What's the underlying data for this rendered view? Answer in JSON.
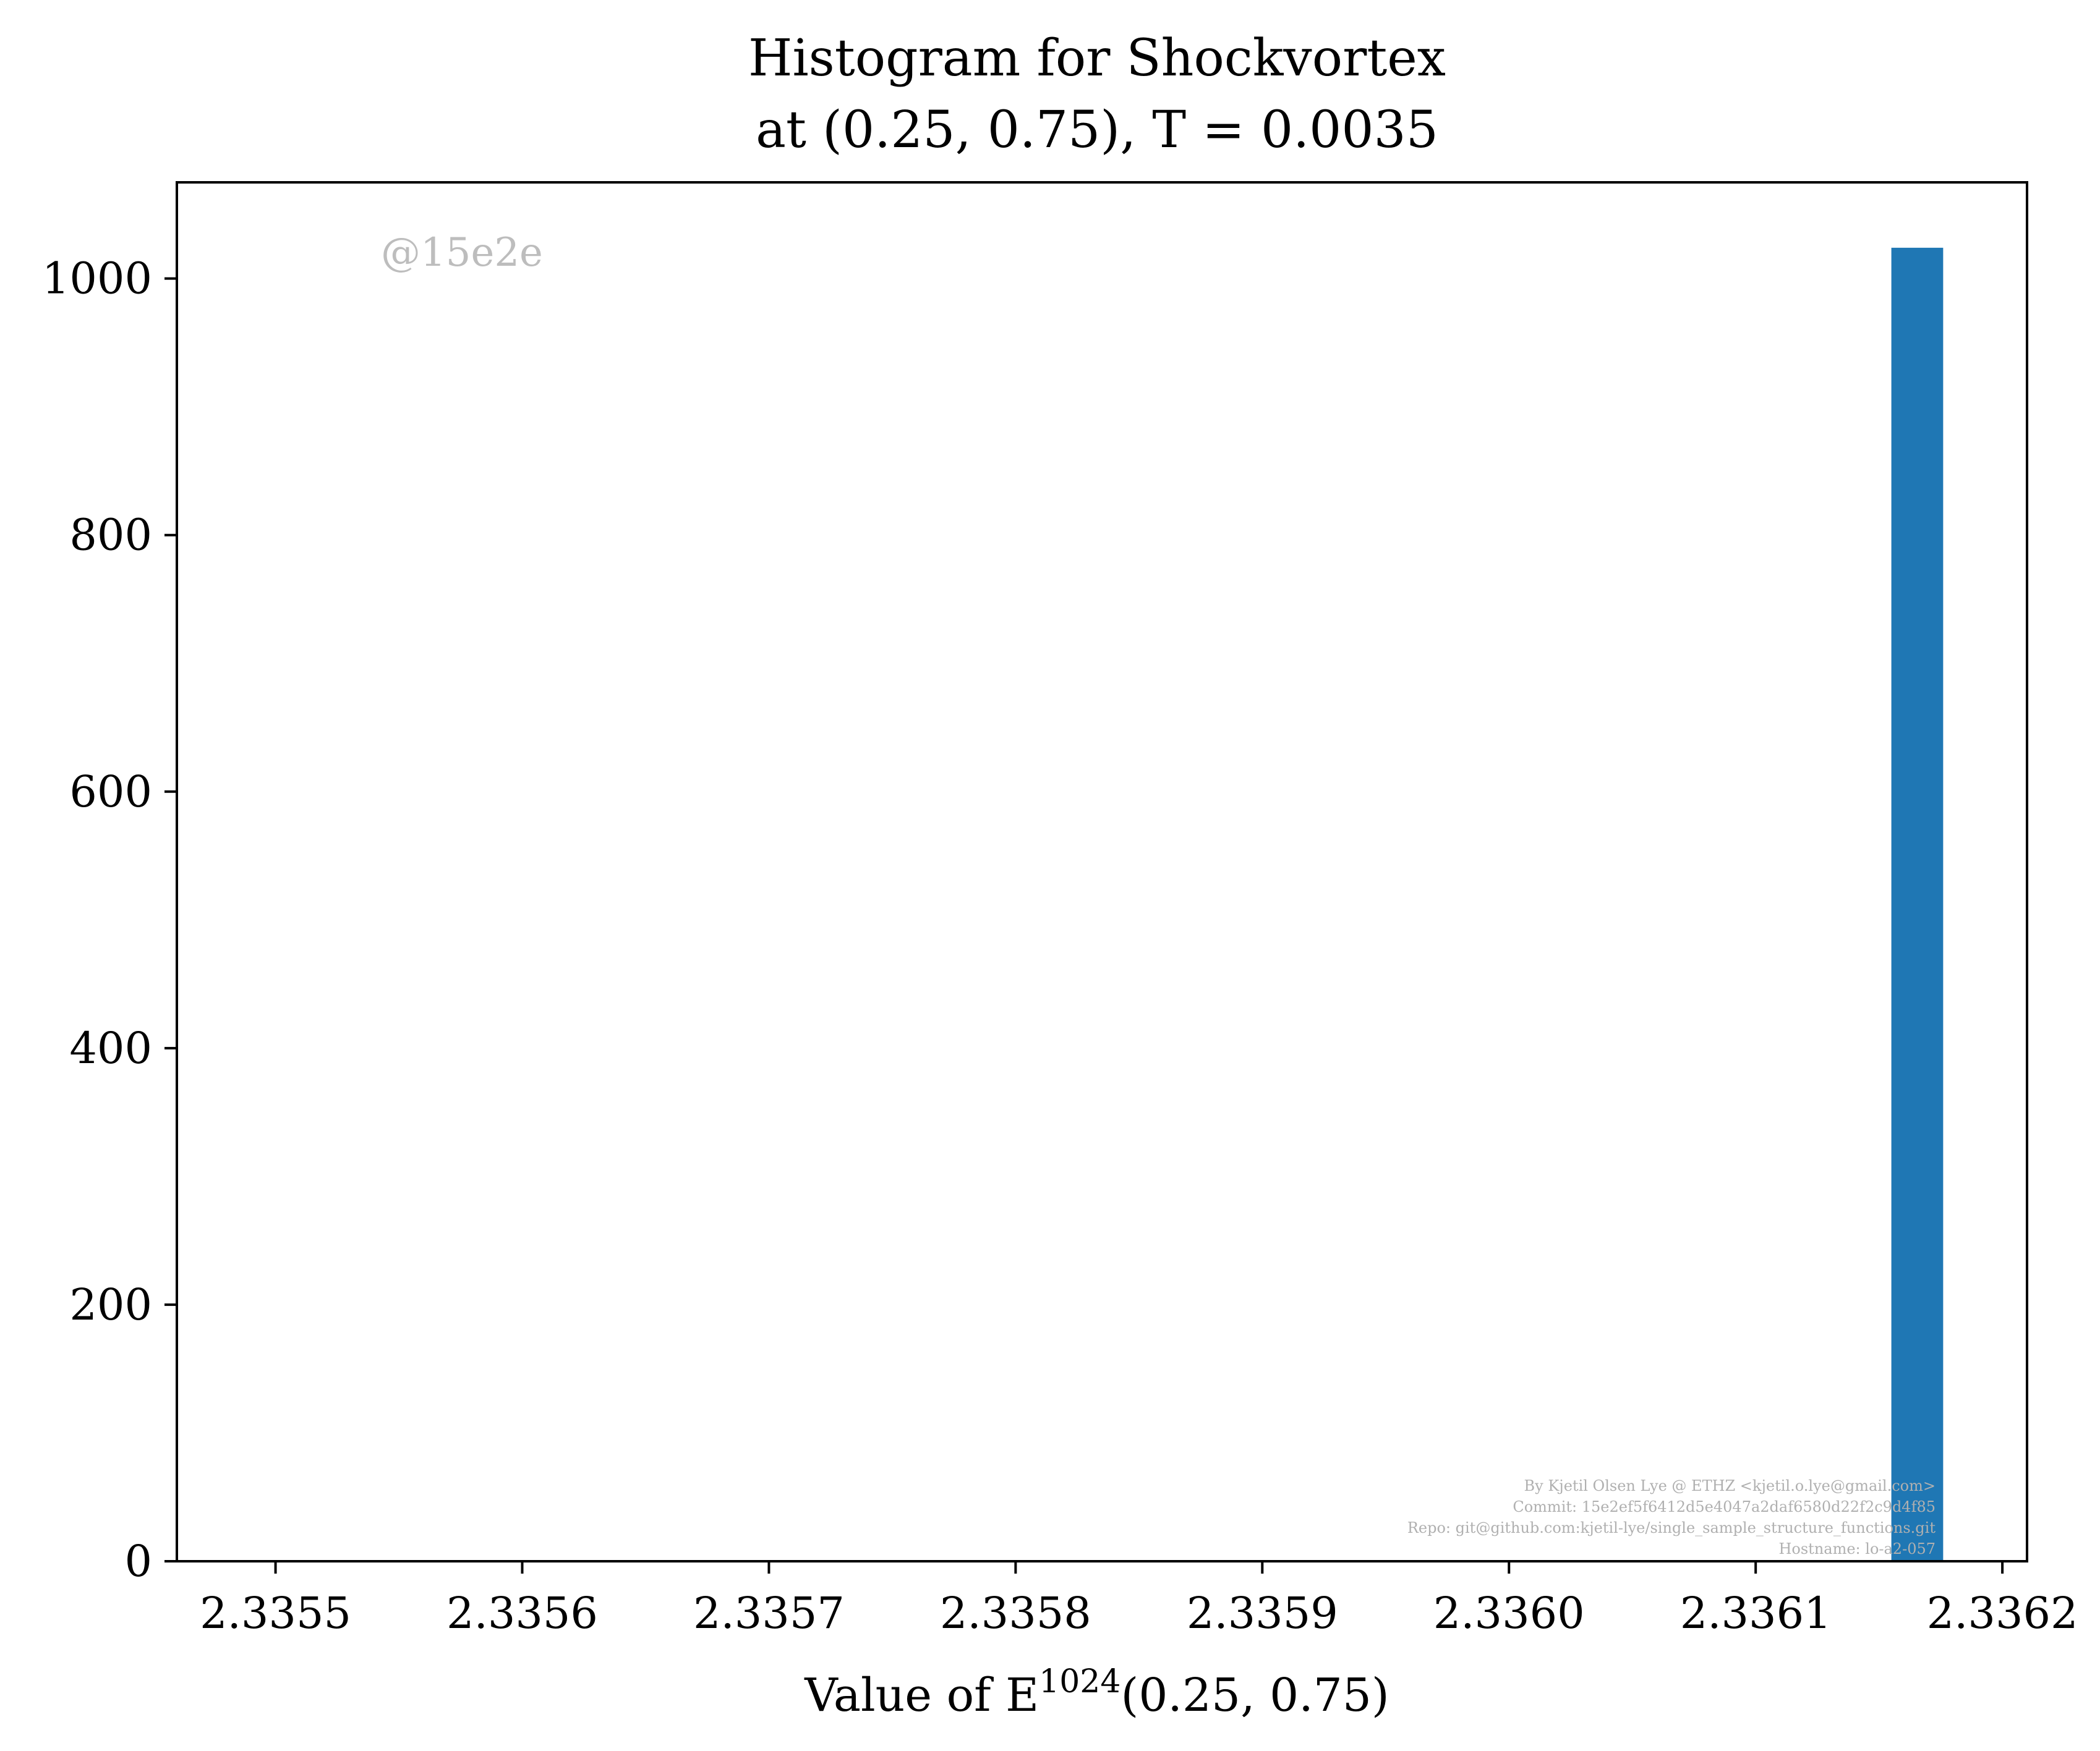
{
  "chart_data": {
    "type": "bar",
    "title_line1": "Histogram for Shockvortex",
    "title_line2": "at (0.25, 0.75), T = 0.0035",
    "xlabel": "Value of E",
    "xlabel_sup": "1024",
    "xlabel_tail": "(0.25, 0.75)",
    "ylabel": "",
    "xlim": [
      2.33546,
      2.33621
    ],
    "ylim": [
      0,
      1075
    ],
    "x_ticks": [
      "2.3355",
      "2.3356",
      "2.3357",
      "2.3358",
      "2.3359",
      "2.3360",
      "2.3361",
      "2.3362"
    ],
    "x_tick_values": [
      2.3355,
      2.3356,
      2.3357,
      2.3358,
      2.3359,
      2.336,
      2.3361,
      2.3362
    ],
    "y_ticks": [
      "0",
      "200",
      "400",
      "600",
      "800",
      "1000"
    ],
    "y_tick_values": [
      0,
      200,
      400,
      600,
      800,
      1000
    ],
    "bars": [
      {
        "x0": 2.336155,
        "x1": 2.336176,
        "count": 1024
      }
    ],
    "bar_color": "#1f77b4",
    "grid": false,
    "legend": "none",
    "watermark": "@15e2e",
    "footer_lines": [
      "By Kjetil Olsen Lye @ ETHZ <kjetil.o.lye@gmail.com>",
      "Commit: 15e2ef5f6412d5e4047a2daf6580d22f2c9d4f85",
      "Repo: git@github.com:kjetil-lye/single_sample_structure_functions.git",
      "Hostname: lo-a2-057"
    ]
  }
}
